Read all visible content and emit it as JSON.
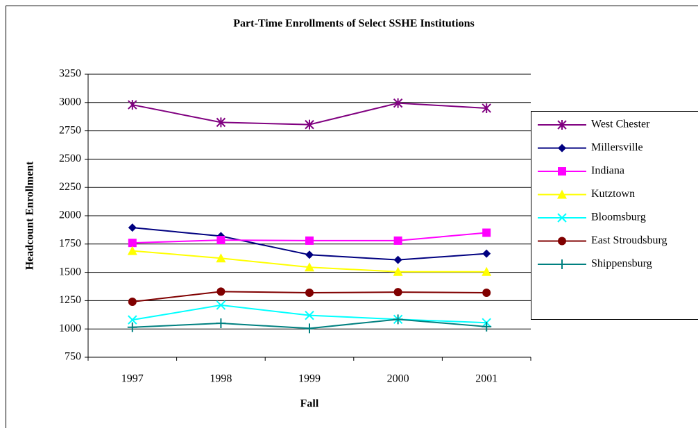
{
  "chart_data": {
    "type": "line",
    "title": "Part-Time Enrollments of Select SSHE Institutions",
    "x_label": "Fall",
    "y_label": "Headcount Enrollment",
    "categories": [
      "1997",
      "1998",
      "1999",
      "2000",
      "2001"
    ],
    "ylim": [
      750,
      3250
    ],
    "yticks": [
      750,
      1000,
      1250,
      1500,
      1750,
      2000,
      2250,
      2500,
      2750,
      3000,
      3250
    ],
    "grid": true,
    "legend": "right",
    "series": [
      {
        "name": "West Chester",
        "color": "#800080",
        "marker": "asterisk",
        "values": [
          2980,
          2825,
          2805,
          2995,
          2950
        ]
      },
      {
        "name": "Millersville",
        "color": "#000080",
        "marker": "diamond",
        "values": [
          1895,
          1820,
          1655,
          1610,
          1665
        ]
      },
      {
        "name": "Indiana",
        "color": "#FF00FF",
        "marker": "square",
        "values": [
          1760,
          1785,
          1780,
          1780,
          1850
        ]
      },
      {
        "name": "Kutztown",
        "color": "#FFFF00",
        "marker": "triangle",
        "values": [
          1690,
          1625,
          1545,
          1505,
          1505
        ]
      },
      {
        "name": "Bloomsburg",
        "color": "#00FFFF",
        "marker": "x",
        "values": [
          1080,
          1210,
          1120,
          1085,
          1055
        ]
      },
      {
        "name": "East Stroudsburg",
        "color": "#800000",
        "marker": "circle",
        "values": [
          1240,
          1330,
          1320,
          1325,
          1320
        ]
      },
      {
        "name": "Shippensburg",
        "color": "#008080",
        "marker": "plus",
        "values": [
          1015,
          1050,
          1005,
          1085,
          1020
        ]
      }
    ]
  }
}
